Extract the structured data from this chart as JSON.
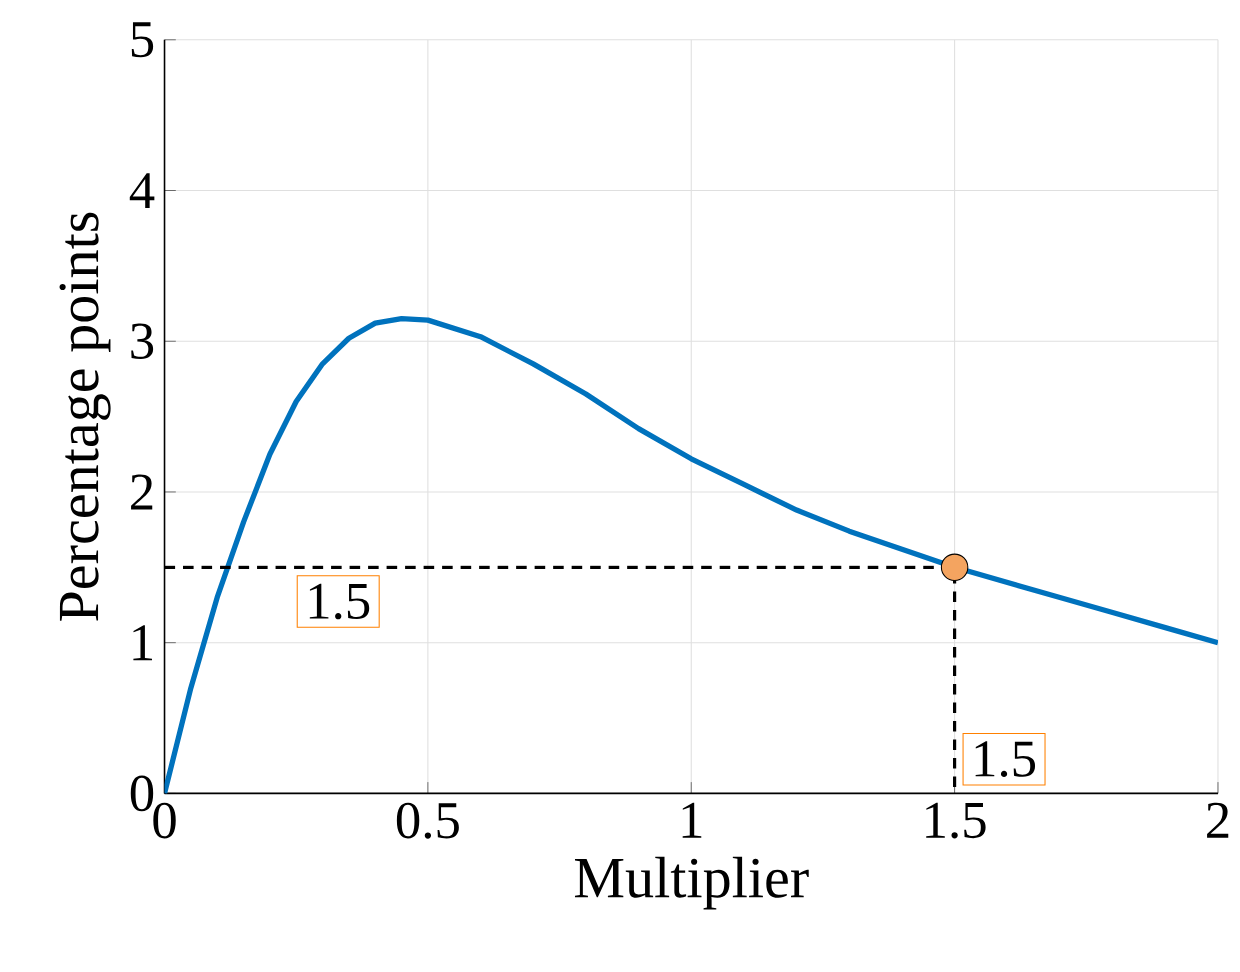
{
  "chart_data": {
    "type": "line",
    "xlabel": "Multiplier",
    "ylabel": "Percentage points",
    "xlim": [
      0,
      2
    ],
    "ylim": [
      0,
      5
    ],
    "xticks": [
      0,
      0.5,
      1,
      1.5,
      2
    ],
    "yticks": [
      0,
      1,
      2,
      3,
      4,
      5
    ],
    "grid": true,
    "series": [
      {
        "color": "#0072bd",
        "x": [
          0,
          0.05,
          0.1,
          0.15,
          0.2,
          0.25,
          0.3,
          0.35,
          0.4,
          0.45,
          0.5,
          0.6,
          0.7,
          0.8,
          0.9,
          1.0,
          1.1,
          1.2,
          1.3,
          1.4,
          1.5,
          1.6,
          1.7,
          1.8,
          1.9,
          2.0
        ],
        "values": [
          0,
          0.7,
          1.3,
          1.8,
          2.25,
          2.6,
          2.85,
          3.02,
          3.12,
          3.15,
          3.14,
          3.03,
          2.85,
          2.65,
          2.42,
          2.22,
          2.05,
          1.88,
          1.74,
          1.62,
          1.5,
          1.4,
          1.3,
          1.2,
          1.1,
          1.0
        ]
      },
      {
        "color": "#000000",
        "line_style": "dashed",
        "x": [
          0,
          1.5,
          1.5
        ],
        "values": [
          1.5,
          1.5,
          0
        ]
      },
      {
        "type": "scatter",
        "color": "#f4a460",
        "marker": "circle",
        "x": [
          1.5
        ],
        "values": [
          1.5
        ]
      }
    ],
    "annotations": [
      {
        "text": "1.5",
        "x": 0,
        "y": 1.5
      },
      {
        "text": "1.5",
        "x": 1.5,
        "y": 0
      }
    ]
  }
}
